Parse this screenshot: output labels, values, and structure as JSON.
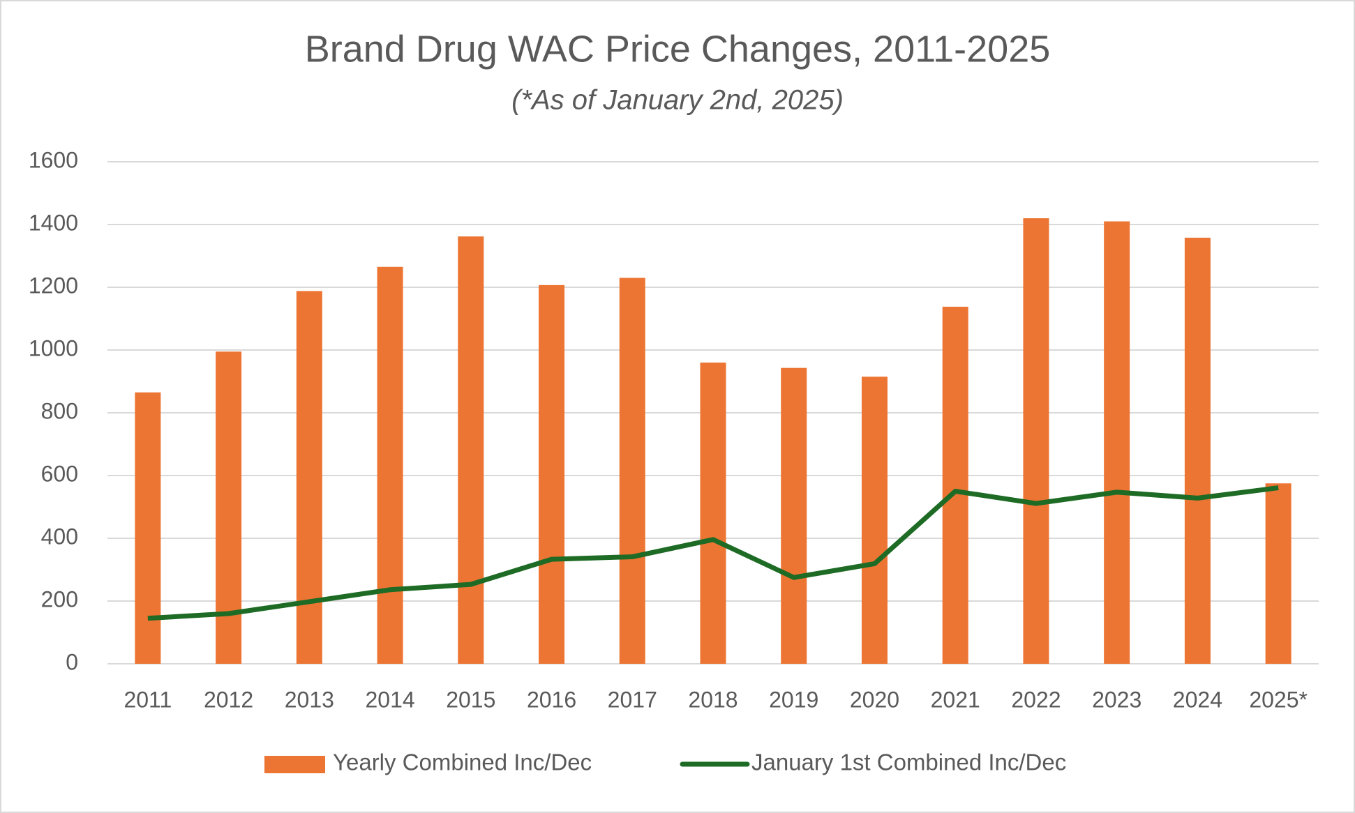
{
  "chart_data": {
    "type": "bar-line",
    "title": "Brand Drug WAC Price Changes, 2011-2025",
    "subtitle": "(*As of January 2nd, 2025)",
    "categories": [
      "2011",
      "2012",
      "2013",
      "2014",
      "2015",
      "2016",
      "2017",
      "2018",
      "2019",
      "2020",
      "2021",
      "2022",
      "2023",
      "2024",
      "2025*"
    ],
    "series": [
      {
        "name": "Yearly Combined Inc/Dec",
        "type": "bar",
        "color": "#ed7533",
        "values": [
          865,
          995,
          1188,
          1265,
          1362,
          1207,
          1230,
          960,
          943,
          915,
          1138,
          1420,
          1410,
          1358,
          575
        ]
      },
      {
        "name": "January 1st Combined Inc/Dec",
        "type": "line",
        "color": "#1e6b25",
        "values": [
          145,
          160,
          198,
          236,
          253,
          333,
          341,
          396,
          275,
          319,
          550,
          511,
          547,
          528,
          561
        ]
      }
    ],
    "ylim": [
      0,
      1600
    ],
    "yticks": [
      0,
      200,
      400,
      600,
      800,
      1000,
      1200,
      1400,
      1600
    ],
    "grid": true,
    "legend": "bottom"
  }
}
